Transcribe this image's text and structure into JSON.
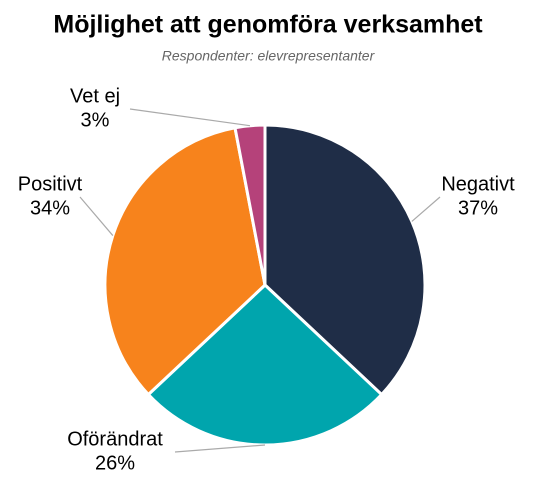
{
  "chart_data": {
    "type": "pie",
    "title": "Möjlighet att genomföra verksamhet",
    "subtitle": "Respondenter: elevrepresentanter",
    "categories": [
      "Negativt",
      "Oförändrat",
      "Positivt",
      "Vet ej"
    ],
    "values": [
      37,
      26,
      34,
      3
    ],
    "value_labels": [
      "37%",
      "26%",
      "34%",
      "3%"
    ],
    "colors": [
      "#1f2d47",
      "#00a5ad",
      "#f7831c",
      "#b5427a"
    ]
  }
}
